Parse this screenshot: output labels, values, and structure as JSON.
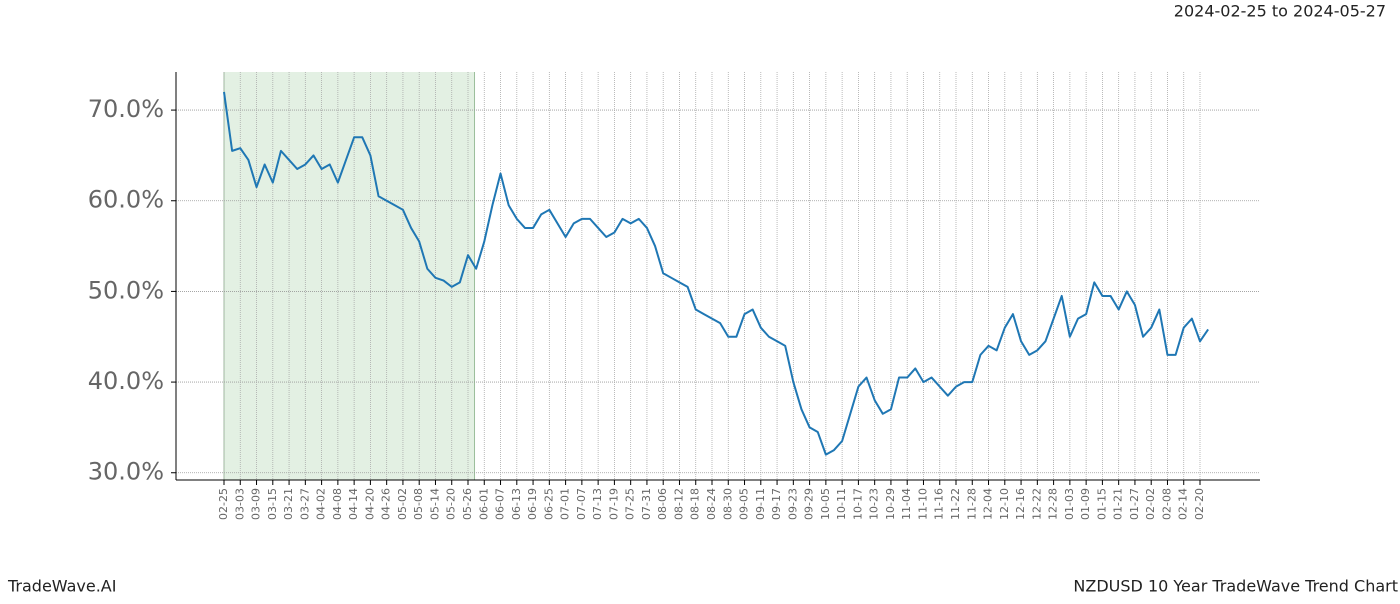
{
  "chart_data": {
    "type": "line",
    "subtitle": "2024-02-25 to 2024-05-27",
    "footer_left": "TradeWave.AI",
    "footer_right": "NZDUSD 10 Year TradeWave Trend Chart",
    "categories": [
      "02-25",
      null,
      "03-03",
      null,
      "03-09",
      null,
      "03-15",
      null,
      "03-21",
      null,
      "03-27",
      null,
      "04-02",
      null,
      "04-08",
      null,
      "04-14",
      null,
      "04-20",
      null,
      "04-26",
      null,
      "05-02",
      null,
      "05-08",
      null,
      "05-14",
      null,
      "05-20",
      null,
      "05-26",
      null,
      "06-01",
      null,
      "06-07",
      null,
      "06-13",
      null,
      "06-19",
      null,
      "06-25",
      null,
      "07-01",
      null,
      "07-07",
      null,
      "07-13",
      null,
      "07-19",
      null,
      "07-25",
      null,
      "07-31",
      null,
      "08-06",
      null,
      "08-12",
      null,
      "08-18",
      null,
      "08-24",
      null,
      "08-30",
      null,
      "09-05",
      null,
      "09-11",
      null,
      "09-17",
      null,
      "09-23",
      null,
      "09-29",
      null,
      "10-05",
      null,
      "10-11",
      null,
      "10-17",
      null,
      "10-23",
      null,
      "10-29",
      null,
      "11-04",
      null,
      "11-10",
      null,
      "11-16",
      null,
      "11-22",
      null,
      "11-28",
      null,
      "12-04",
      null,
      "12-10",
      null,
      "12-16",
      null,
      "12-22",
      null,
      "12-28",
      null,
      "01-03",
      null,
      "01-09",
      null,
      "01-15",
      null,
      "01-21",
      null,
      "01-27",
      null,
      "02-02",
      null,
      "02-08",
      null,
      "02-14",
      null,
      "02-20",
      null
    ],
    "series": [
      {
        "color": "#1f77b4",
        "values": [
          72.0,
          65.5,
          65.8,
          64.5,
          61.5,
          64.0,
          62.0,
          65.5,
          64.5,
          63.5,
          64.0,
          65.0,
          63.5,
          64.0,
          62.0,
          64.5,
          67.0,
          67.0,
          65.0,
          60.5,
          60.0,
          59.5,
          59.0,
          57.0,
          55.5,
          52.5,
          51.5,
          51.2,
          50.5,
          51.0,
          54.0,
          52.5,
          55.5,
          59.5,
          63.0,
          59.5,
          58.0,
          57.0,
          57.0,
          58.5,
          59.0,
          57.5,
          56.0,
          57.5,
          58.0,
          58.0,
          57.0,
          56.0,
          56.5,
          58.0,
          57.5,
          58.0,
          57.0,
          55.0,
          52.0,
          51.5,
          51.0,
          50.5,
          48.0,
          47.5,
          47.0,
          46.5,
          45.0,
          45.0,
          47.5,
          48.0,
          46.0,
          45.0,
          44.5,
          44.0,
          40.0,
          37.0,
          35.0,
          34.5,
          32.0,
          32.5,
          33.5,
          36.5,
          39.5,
          40.5,
          38.0,
          36.5,
          37.0,
          40.5,
          40.5,
          41.5,
          40.0,
          40.5,
          39.5,
          38.5,
          39.5,
          40.0,
          40.0,
          43.0,
          44.0,
          43.5,
          46.0,
          47.5,
          44.5,
          43.0,
          43.5,
          44.5,
          47.0,
          49.5,
          45.0,
          47.0,
          47.5,
          51.0,
          49.5,
          49.5,
          48.0,
          50.0,
          48.5,
          45.0,
          46.0,
          48.0,
          43.0,
          43.0,
          46.0,
          47.0,
          44.5,
          45.8
        ]
      }
    ],
    "ylim": [
      29.2,
      74.2
    ],
    "yticks": [
      {
        "value": 30,
        "label": "30.0%"
      },
      {
        "value": 40,
        "label": "40.0%"
      },
      {
        "value": 50,
        "label": "50.0%"
      },
      {
        "value": 60,
        "label": "60.0%"
      },
      {
        "value": 70,
        "label": "70.0%"
      }
    ],
    "grid": true,
    "highlight_color": "#e3f0e3"
  }
}
